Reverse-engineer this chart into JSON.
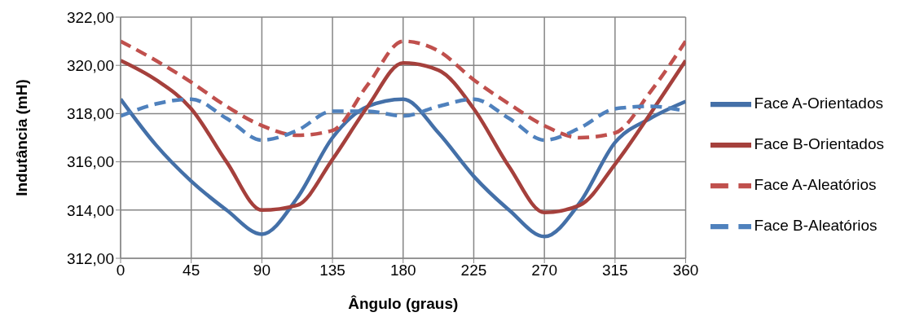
{
  "chart_data": {
    "type": "line",
    "xlabel": "Ângulo (graus)",
    "ylabel": "Indutância (mH)",
    "x": [
      0,
      22.5,
      45,
      67.5,
      90,
      112.5,
      135,
      157.5,
      180,
      202.5,
      225,
      247.5,
      270,
      292.5,
      315,
      337.5,
      360
    ],
    "xlim": [
      0,
      360
    ],
    "xticks": [
      0,
      45,
      90,
      135,
      180,
      225,
      270,
      315,
      360
    ],
    "ylim": [
      312,
      322
    ],
    "yticks": [
      {
        "value": 312,
        "label": "312,00"
      },
      {
        "value": 314,
        "label": "314,00"
      },
      {
        "value": 316,
        "label": "316,00"
      },
      {
        "value": 318,
        "label": "318,00"
      },
      {
        "value": 320,
        "label": "320,00"
      },
      {
        "value": 322,
        "label": "322,00"
      }
    ],
    "grid": true,
    "legend": "right",
    "marker": "none",
    "series": [
      {
        "name": "Face A-Orientados",
        "color": "#4470a8",
        "line_style": "solid",
        "values": [
          318.6,
          316.7,
          315.2,
          314.0,
          313.0,
          314.5,
          317.0,
          318.3,
          318.6,
          317.2,
          315.4,
          314.0,
          312.9,
          314.3,
          316.8,
          317.8,
          318.5
        ]
      },
      {
        "name": "Face B-Orientados",
        "color": "#a5403c",
        "line_style": "solid",
        "values": [
          320.2,
          319.4,
          318.2,
          316.0,
          314.0,
          314.2,
          316.1,
          318.3,
          320.1,
          319.8,
          318.2,
          315.8,
          313.9,
          314.2,
          315.9,
          318.0,
          320.2
        ]
      },
      {
        "name": "Face A-Aleatórios",
        "color": "#c0504d",
        "line_style": "dashed",
        "values": [
          321.0,
          320.2,
          319.3,
          318.3,
          317.5,
          317.1,
          317.3,
          319.2,
          321.0,
          320.6,
          319.4,
          318.4,
          317.5,
          317.0,
          317.2,
          318.9,
          321.0
        ]
      },
      {
        "name": "Face B-Aleatórios",
        "color": "#4f81bd",
        "line_style": "dashed",
        "values": [
          317.9,
          318.4,
          318.6,
          317.8,
          316.9,
          317.3,
          318.1,
          318.1,
          317.9,
          318.3,
          318.6,
          317.8,
          316.9,
          317.4,
          318.2,
          318.3,
          318.1
        ]
      }
    ]
  }
}
